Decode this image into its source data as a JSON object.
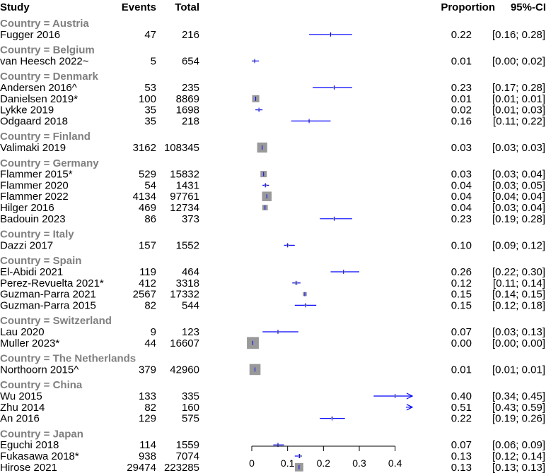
{
  "chart_data": {
    "type": "forest",
    "headers": {
      "study": "Study",
      "events": "Events",
      "total": "Total",
      "proportion": "Proportion",
      "ci": "95%-CI"
    },
    "xlim": [
      0,
      0.4
    ],
    "x_ticks": [
      "0",
      "0.1",
      "0.2",
      "0.3",
      "0.4"
    ],
    "x_tick_values": [
      0,
      0.1,
      0.2,
      0.3,
      0.4
    ],
    "colors": {
      "ci_line": "#0000ff",
      "box": "#999999",
      "group_label": "#808080"
    },
    "groups": [
      {
        "label": "Country = Austria",
        "studies": [
          {
            "name": "Fugger 2016",
            "events": "47",
            "total": "216",
            "prop": 0.22,
            "lo": 0.16,
            "hi": 0.28,
            "prop_text": "0.22",
            "ci_text": "[0.16; 0.28]",
            "weight": 0.4
          }
        ]
      },
      {
        "label": "Country = Belgium",
        "studies": [
          {
            "name": "van Heesch 2022~",
            "events": "5",
            "total": "654",
            "prop": 0.008,
            "lo": 0.0,
            "hi": 0.02,
            "prop_text": "0.01",
            "ci_text": "[0.00; 0.02]",
            "weight": 0.4
          }
        ]
      },
      {
        "label": "Country = Denmark",
        "studies": [
          {
            "name": "Andersen 2016^",
            "events": "53",
            "total": "235",
            "prop": 0.23,
            "lo": 0.17,
            "hi": 0.28,
            "prop_text": "0.23",
            "ci_text": "[0.17; 0.28]",
            "weight": 0.4
          },
          {
            "name": "Danielsen 2019*",
            "events": "100",
            "total": "8869",
            "prop": 0.011,
            "lo": 0.01,
            "hi": 0.013,
            "prop_text": "0.01",
            "ci_text": "[0.01; 0.01]",
            "weight": 5
          },
          {
            "name": "Lykke 2019",
            "events": "35",
            "total": "1698",
            "prop": 0.02,
            "lo": 0.01,
            "hi": 0.03,
            "prop_text": "0.02",
            "ci_text": "[0.01; 0.03]",
            "weight": 0.4
          },
          {
            "name": "Odgaard 2018",
            "events": "35",
            "total": "218",
            "prop": 0.16,
            "lo": 0.11,
            "hi": 0.22,
            "prop_text": "0.16",
            "ci_text": "[0.11; 0.22]",
            "weight": 0.4
          }
        ]
      },
      {
        "label": "Country = Finland",
        "studies": [
          {
            "name": "Valimaki 2019",
            "events": "3162",
            "total": "108345",
            "prop": 0.029,
            "lo": 0.028,
            "hi": 0.03,
            "prop_text": "0.03",
            "ci_text": "[0.03; 0.03]",
            "weight": 10
          }
        ]
      },
      {
        "label": "Country = Germany",
        "studies": [
          {
            "name": "Flammer 2015*",
            "events": "529",
            "total": "15832",
            "prop": 0.033,
            "lo": 0.03,
            "hi": 0.036,
            "prop_text": "0.03",
            "ci_text": "[0.03; 0.04]",
            "weight": 4
          },
          {
            "name": "Flammer 2020",
            "events": "54",
            "total": "1431",
            "prop": 0.038,
            "lo": 0.03,
            "hi": 0.048,
            "prop_text": "0.04",
            "ci_text": "[0.03; 0.05]",
            "weight": 0.6
          },
          {
            "name": "Flammer 2022",
            "events": "4134",
            "total": "97761",
            "prop": 0.042,
            "lo": 0.041,
            "hi": 0.044,
            "prop_text": "0.04",
            "ci_text": "[0.04; 0.04]",
            "weight": 9
          },
          {
            "name": "Hilger 2016",
            "events": "469",
            "total": "12734",
            "prop": 0.037,
            "lo": 0.034,
            "hi": 0.04,
            "prop_text": "0.04",
            "ci_text": "[0.03; 0.04]",
            "weight": 3
          },
          {
            "name": "Badouin 2023",
            "events": "86",
            "total": "373",
            "prop": 0.23,
            "lo": 0.19,
            "hi": 0.28,
            "prop_text": "0.23",
            "ci_text": "[0.19; 0.28]",
            "weight": 0.4
          }
        ]
      },
      {
        "label": "Country = Italy",
        "studies": [
          {
            "name": "Dazzi 2017",
            "events": "157",
            "total": "1552",
            "prop": 0.1,
            "lo": 0.09,
            "hi": 0.12,
            "prop_text": "0.10",
            "ci_text": "[0.09; 0.12]",
            "weight": 0.6
          }
        ]
      },
      {
        "label": "Country = Spain",
        "studies": [
          {
            "name": "El-Abidi 2021",
            "events": "119",
            "total": "464",
            "prop": 0.256,
            "lo": 0.22,
            "hi": 0.3,
            "prop_text": "0.26",
            "ci_text": "[0.22; 0.30]",
            "weight": 0.4
          },
          {
            "name": "Perez-Revuelta 2021*",
            "events": "412",
            "total": "3318",
            "prop": 0.124,
            "lo": 0.113,
            "hi": 0.136,
            "prop_text": "0.12",
            "ci_text": "[0.11; 0.14]",
            "weight": 0.8
          },
          {
            "name": "Guzman-Parra 2021",
            "events": "2567",
            "total": "17332",
            "prop": 0.148,
            "lo": 0.143,
            "hi": 0.153,
            "prop_text": "0.15",
            "ci_text": "[0.14; 0.15]",
            "weight": 1.5
          },
          {
            "name": "Guzman-Parra 2015",
            "events": "82",
            "total": "544",
            "prop": 0.15,
            "lo": 0.12,
            "hi": 0.18,
            "prop_text": "0.15",
            "ci_text": "[0.12; 0.18]",
            "weight": 0.4
          }
        ]
      },
      {
        "label": "Country = Switzerland",
        "studies": [
          {
            "name": "Lau 2020",
            "events": "9",
            "total": "123",
            "prop": 0.073,
            "lo": 0.03,
            "hi": 0.13,
            "prop_text": "0.07",
            "ci_text": "[0.03; 0.13]",
            "weight": 0.4
          },
          {
            "name": "Muller 2023*",
            "events": "44",
            "total": "16607",
            "prop": 0.003,
            "lo": 0.002,
            "hi": 0.004,
            "prop_text": "0.00",
            "ci_text": "[0.00; 0.00]",
            "weight": 14
          }
        ]
      },
      {
        "label": "Country = The Netherlands",
        "studies": [
          {
            "name": "Northoorn 2015^",
            "events": "379",
            "total": "42960",
            "prop": 0.009,
            "lo": 0.008,
            "hi": 0.01,
            "prop_text": "0.01",
            "ci_text": "[0.01; 0.01]",
            "weight": 12
          }
        ]
      },
      {
        "label": "Country = China",
        "studies": [
          {
            "name": "Wu 2015",
            "events": "133",
            "total": "335",
            "prop": 0.4,
            "lo": 0.34,
            "hi": 0.45,
            "prop_text": "0.40",
            "ci_text": "[0.34; 0.45]",
            "weight": 0.4
          },
          {
            "name": "Zhu 2014",
            "events": "82",
            "total": "160",
            "prop": 0.51,
            "lo": 0.43,
            "hi": 0.59,
            "prop_text": "0.51",
            "ci_text": "[0.43; 0.59]",
            "weight": 0.4
          },
          {
            "name": "An 2016",
            "events": "129",
            "total": "575",
            "prop": 0.224,
            "lo": 0.19,
            "hi": 0.26,
            "prop_text": "0.22",
            "ci_text": "[0.19; 0.26]",
            "weight": 0.4
          }
        ]
      },
      {
        "label": "Country = Japan",
        "studies": [
          {
            "name": "Eguchi 2018",
            "events": "114",
            "total": "1559",
            "prop": 0.073,
            "lo": 0.06,
            "hi": 0.09,
            "prop_text": "0.07",
            "ci_text": "[0.06; 0.09]",
            "weight": 0.5
          },
          {
            "name": "Fukasawa 2018*",
            "events": "938",
            "total": "7074",
            "prop": 0.133,
            "lo": 0.12,
            "hi": 0.14,
            "prop_text": "0.13",
            "ci_text": "[0.12; 0.14]",
            "weight": 1
          },
          {
            "name": "Hirose 2021",
            "events": "29474",
            "total": "223285",
            "prop": 0.132,
            "lo": 0.131,
            "hi": 0.133,
            "prop_text": "0.13",
            "ci_text": "[0.13; 0.13]",
            "weight": 7
          }
        ]
      }
    ]
  }
}
